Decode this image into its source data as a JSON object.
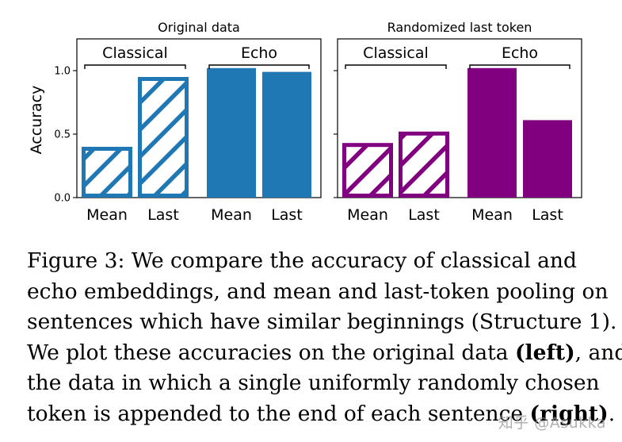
{
  "chart_data": [
    {
      "type": "bar",
      "title": "Original data",
      "ylabel": "Accuracy",
      "ylim": [
        0,
        1.25
      ],
      "yticks": [
        "0.0",
        "0.5",
        "1.0"
      ],
      "categories": [
        "Mean",
        "Last",
        "Mean",
        "Last"
      ],
      "groups": [
        "Classical",
        "Echo"
      ],
      "values": [
        0.4,
        0.95,
        1.02,
        0.99
      ],
      "hatched": [
        true,
        true,
        false,
        false
      ],
      "color": "#1f77b4"
    },
    {
      "type": "bar",
      "title": "Randomized last token",
      "ylabel": "",
      "ylim": [
        0,
        1.25
      ],
      "yticks": [],
      "categories": [
        "Mean",
        "Last",
        "Mean",
        "Last"
      ],
      "groups": [
        "Classical",
        "Echo"
      ],
      "values": [
        0.43,
        0.52,
        1.02,
        0.61
      ],
      "hatched": [
        true,
        true,
        false,
        false
      ],
      "color": "#800080"
    }
  ],
  "caption": {
    "lines": [
      [
        {
          "t": "Figure 3:  We compare the accuracy of classical and"
        }
      ],
      [
        {
          "t": "echo embeddings, and mean and last-token pooling on"
        }
      ],
      [
        {
          "t": "sentences which have similar beginnings (Structure 1)."
        }
      ],
      [
        {
          "t": "We plot these accuracies on the original data "
        },
        {
          "t": "(left)",
          "b": true
        },
        {
          "t": ", and"
        }
      ],
      [
        {
          "t": "the data in which a single uniformly randomly chosen"
        }
      ],
      [
        {
          "t": "token is appended to the end of each sentence "
        },
        {
          "t": "(right)",
          "b": true
        },
        {
          "t": "."
        }
      ]
    ]
  },
  "watermark": "知乎 @Asukka"
}
